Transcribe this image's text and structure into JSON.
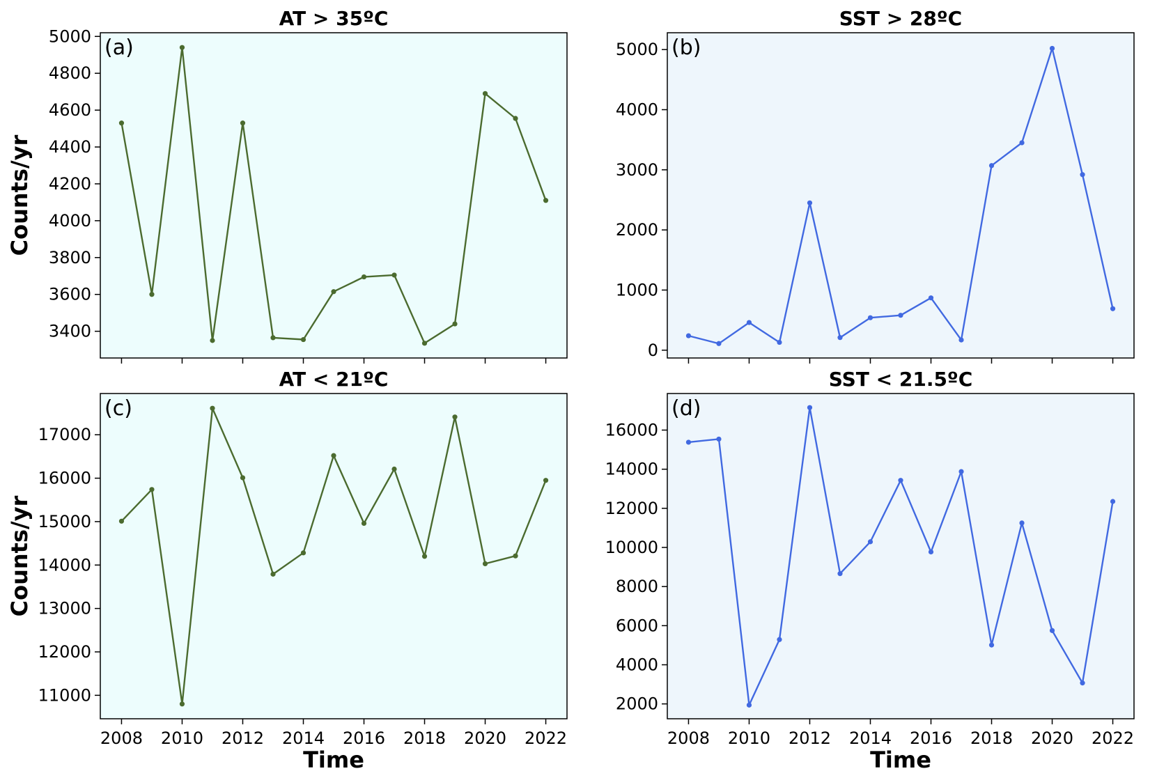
{
  "colors": {
    "green": "#4b6b2f",
    "blue": "#4169e1",
    "bg_at": "#edfdfd",
    "bg_sst": "#eef6fc"
  },
  "chart_data": [
    {
      "type": "line",
      "panel": "(a)",
      "title": "AT > 35ºC",
      "xlabel": "",
      "ylabel": "Counts/yr",
      "x": [
        2008,
        2009,
        2010,
        2011,
        2012,
        2013,
        2014,
        2015,
        2016,
        2017,
        2018,
        2019,
        2020,
        2021,
        2022
      ],
      "y": [
        4530,
        3600,
        4940,
        3350,
        4530,
        3365,
        3355,
        3615,
        3695,
        3705,
        3335,
        3440,
        4690,
        4555,
        4110
      ],
      "xticks": [
        2008,
        2010,
        2012,
        2014,
        2016,
        2018,
        2020,
        2022
      ],
      "yticks": [
        3400,
        3600,
        3800,
        4000,
        4200,
        4400,
        4600,
        4800,
        5000
      ],
      "ylim": [
        3255,
        5020
      ],
      "color": "#4b6b2f",
      "background": "#edfdfd",
      "show_xticklabels": false
    },
    {
      "type": "line",
      "panel": "(b)",
      "title": "SST > 28ºC",
      "xlabel": "",
      "ylabel": "",
      "x": [
        2008,
        2009,
        2010,
        2011,
        2012,
        2013,
        2014,
        2015,
        2016,
        2017,
        2018,
        2019,
        2020,
        2021,
        2022
      ],
      "y": [
        240,
        110,
        460,
        130,
        2450,
        210,
        540,
        580,
        870,
        170,
        3070,
        3450,
        5020,
        2920,
        690
      ],
      "xticks": [
        2008,
        2010,
        2012,
        2014,
        2016,
        2018,
        2020,
        2022
      ],
      "yticks": [
        0,
        1000,
        2000,
        3000,
        4000,
        5000
      ],
      "ylim": [
        -130,
        5280
      ],
      "color": "#4169e1",
      "background": "#eef6fc",
      "show_xticklabels": false
    },
    {
      "type": "line",
      "panel": "(c)",
      "title": "AT < 21ºC",
      "xlabel": "Time",
      "ylabel": "Counts/yr",
      "x": [
        2008,
        2009,
        2010,
        2011,
        2012,
        2013,
        2014,
        2015,
        2016,
        2017,
        2018,
        2019,
        2020,
        2021,
        2022
      ],
      "y": [
        15010,
        15740,
        10800,
        17610,
        16010,
        13790,
        14280,
        16520,
        14960,
        16210,
        14200,
        17410,
        14030,
        14210,
        15950
      ],
      "xticks": [
        2008,
        2010,
        2012,
        2014,
        2016,
        2018,
        2020,
        2022
      ],
      "yticks": [
        11000,
        12000,
        13000,
        14000,
        15000,
        16000,
        17000
      ],
      "ylim": [
        10460,
        17950
      ],
      "color": "#4b6b2f",
      "background": "#edfdfd",
      "show_xticklabels": true
    },
    {
      "type": "line",
      "panel": "(d)",
      "title": "SST < 21.5ºC",
      "xlabel": "Time",
      "ylabel": "",
      "x": [
        2008,
        2009,
        2010,
        2011,
        2012,
        2013,
        2014,
        2015,
        2016,
        2017,
        2018,
        2019,
        2020,
        2021,
        2022
      ],
      "y": [
        15380,
        15540,
        1940,
        5290,
        17150,
        8660,
        10290,
        13430,
        9770,
        13880,
        5010,
        11250,
        5750,
        3070,
        12350
      ],
      "xticks": [
        2008,
        2010,
        2012,
        2014,
        2016,
        2018,
        2020,
        2022
      ],
      "yticks": [
        2000,
        4000,
        6000,
        8000,
        10000,
        12000,
        14000,
        16000
      ],
      "ylim": [
        1240,
        17870
      ],
      "color": "#4169e1",
      "background": "#eef6fc",
      "show_xticklabels": true
    }
  ]
}
